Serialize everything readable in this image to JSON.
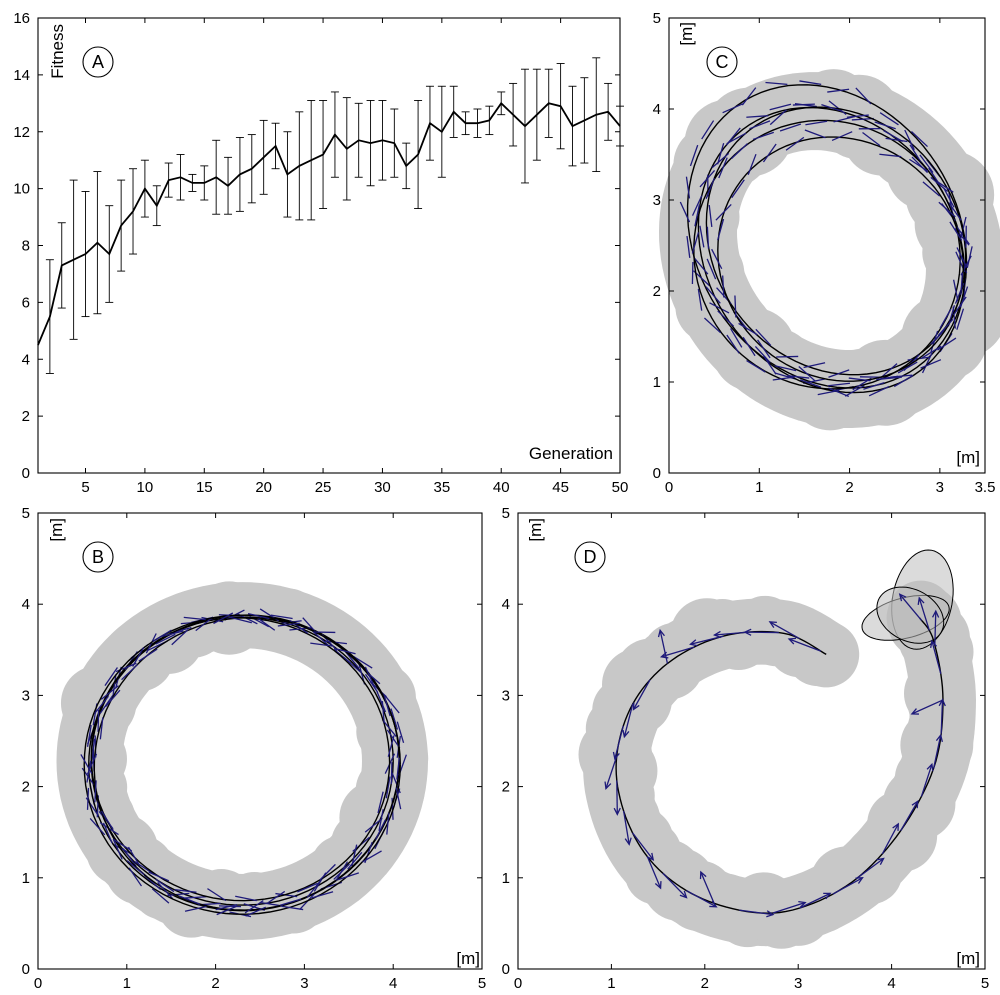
{
  "colors": {
    "track": "#c8c8c8",
    "trajectory": "#000000",
    "arrows": "#1e1a7a"
  },
  "chart_data": [
    {
      "panel": "A",
      "type": "line",
      "title": "",
      "xlabel": "Generation",
      "ylabel": "Fitness",
      "xlim": [
        1,
        50
      ],
      "ylim": [
        0,
        16
      ],
      "xticks": [
        5,
        10,
        15,
        20,
        25,
        30,
        35,
        40,
        45,
        50
      ],
      "yticks": [
        0,
        2,
        4,
        6,
        8,
        10,
        12,
        14,
        16
      ],
      "grid": false,
      "x": [
        1,
        2,
        3,
        4,
        5,
        6,
        7,
        8,
        9,
        10,
        11,
        12,
        13,
        14,
        15,
        16,
        17,
        18,
        19,
        20,
        21,
        22,
        23,
        24,
        25,
        26,
        27,
        28,
        29,
        30,
        31,
        32,
        33,
        34,
        35,
        36,
        37,
        38,
        39,
        40,
        41,
        42,
        43,
        44,
        45,
        46,
        47,
        48,
        49,
        50
      ],
      "series": [
        {
          "values": [
            4.5,
            5.5,
            7.3,
            7.5,
            7.7,
            8.1,
            7.7,
            8.7,
            9.2,
            10.0,
            9.4,
            10.3,
            10.4,
            10.2,
            10.2,
            10.4,
            10.1,
            10.5,
            10.7,
            11.1,
            11.5,
            10.5,
            10.8,
            11.0,
            11.2,
            11.9,
            11.4,
            11.7,
            11.6,
            11.7,
            11.6,
            10.8,
            11.2,
            12.3,
            12.0,
            12.7,
            12.3,
            12.3,
            12.4,
            13.0,
            12.6,
            12.2,
            12.6,
            13.0,
            12.9,
            12.2,
            12.4,
            12.6,
            12.7,
            12.2
          ],
          "error": [
            0,
            2.0,
            1.5,
            2.8,
            2.2,
            2.5,
            1.7,
            1.6,
            1.5,
            1.0,
            0.7,
            0.6,
            0.8,
            0.3,
            0.6,
            1.3,
            1.0,
            1.3,
            1.2,
            1.3,
            0.8,
            1.5,
            1.9,
            2.1,
            1.9,
            1.5,
            1.8,
            1.3,
            1.5,
            1.4,
            1.2,
            0.8,
            1.9,
            1.3,
            1.6,
            0.9,
            0.4,
            0.5,
            0.5,
            0.4,
            1.1,
            2.0,
            1.6,
            1.2,
            1.5,
            1.4,
            1.5,
            2.0,
            1.0,
            0.7
          ]
        }
      ],
      "badge": "A"
    },
    {
      "panel": "C",
      "type": "line",
      "title": "",
      "xlabel": "[m]",
      "ylabel": "[m]",
      "xlim": [
        0,
        3.5
      ],
      "ylim": [
        0,
        5
      ],
      "xticks": [
        0,
        1,
        2,
        3,
        3.5
      ],
      "xticklabels": [
        "0",
        "1",
        "2",
        "3",
        "3.5"
      ],
      "yticks": [
        0,
        1,
        2,
        3,
        4,
        5
      ],
      "grid": false,
      "badge": "C",
      "description_series": "trajectory loops around an elliptical track",
      "loops": [
        {
          "cx": 1.75,
          "cy": 2.6,
          "rx": 1.45,
          "ry": 1.75,
          "rot": 33
        },
        {
          "cx": 1.8,
          "cy": 2.45,
          "rx": 1.38,
          "ry": 1.65,
          "rot": 35
        },
        {
          "cx": 1.85,
          "cy": 2.55,
          "rx": 1.35,
          "ry": 1.55,
          "rot": 40
        },
        {
          "cx": 1.75,
          "cy": 2.4,
          "rx": 1.45,
          "ry": 1.5,
          "rot": 45
        },
        {
          "cx": 1.9,
          "cy": 2.35,
          "rx": 1.3,
          "ry": 1.4,
          "rot": 50
        }
      ],
      "track_loop": {
        "cx": 1.8,
        "cy": 2.45,
        "rx": 1.4,
        "ry": 1.6,
        "rot": 38
      }
    },
    {
      "panel": "B",
      "type": "line",
      "title": "",
      "xlabel": "[m]",
      "ylabel": "[m]",
      "xlim": [
        0,
        5
      ],
      "ylim": [
        0,
        5
      ],
      "xticks": [
        0,
        1,
        2,
        3,
        4,
        5
      ],
      "yticks": [
        0,
        1,
        2,
        3,
        4,
        5
      ],
      "grid": false,
      "badge": "B",
      "loops": [
        {
          "cx": 2.3,
          "cy": 2.28,
          "rx": 1.7,
          "ry": 1.58,
          "rot": 0
        },
        {
          "cx": 2.32,
          "cy": 2.26,
          "rx": 1.75,
          "ry": 1.62,
          "rot": 5
        },
        {
          "cx": 2.28,
          "cy": 2.3,
          "rx": 1.68,
          "ry": 1.55,
          "rot": -5
        },
        {
          "cx": 2.35,
          "cy": 2.25,
          "rx": 1.72,
          "ry": 1.6,
          "rot": 10
        },
        {
          "cx": 2.3,
          "cy": 2.24,
          "rx": 1.78,
          "ry": 1.64,
          "rot": 0
        }
      ],
      "track_loop": {
        "cx": 2.3,
        "cy": 2.28,
        "rx": 1.72,
        "ry": 1.6,
        "rot": 0
      }
    },
    {
      "panel": "D",
      "type": "line",
      "title": "",
      "xlabel": "[m]",
      "ylabel": "[m]",
      "xlim": [
        0,
        5
      ],
      "ylim": [
        0,
        5
      ],
      "xticks": [
        0,
        1,
        2,
        3,
        4,
        5
      ],
      "yticks": [
        0,
        1,
        2,
        3,
        4,
        5
      ],
      "grid": false,
      "badge": "D",
      "path_points": [
        [
          3.3,
          3.45
        ],
        [
          2.85,
          3.68
        ],
        [
          2.2,
          3.65
        ],
        [
          1.6,
          3.35
        ],
        [
          1.2,
          2.85
        ],
        [
          1.05,
          2.2
        ],
        [
          1.2,
          1.55
        ],
        [
          1.55,
          1.05
        ],
        [
          2.1,
          0.72
        ],
        [
          2.8,
          0.62
        ],
        [
          3.5,
          0.9
        ],
        [
          4.05,
          1.45
        ],
        [
          4.45,
          2.2
        ],
        [
          4.55,
          2.95
        ],
        [
          4.45,
          3.6
        ],
        [
          4.3,
          3.85
        ]
      ],
      "small_loops": [
        {
          "cx": 4.33,
          "cy": 4.05,
          "rx": 0.32,
          "ry": 0.55,
          "rot": -10
        },
        {
          "cx": 4.15,
          "cy": 3.85,
          "rx": 0.48,
          "ry": 0.22,
          "rot": 15
        },
        {
          "cx": 4.2,
          "cy": 3.88,
          "rx": 0.38,
          "ry": 0.28,
          "rot": -30
        }
      ]
    }
  ]
}
